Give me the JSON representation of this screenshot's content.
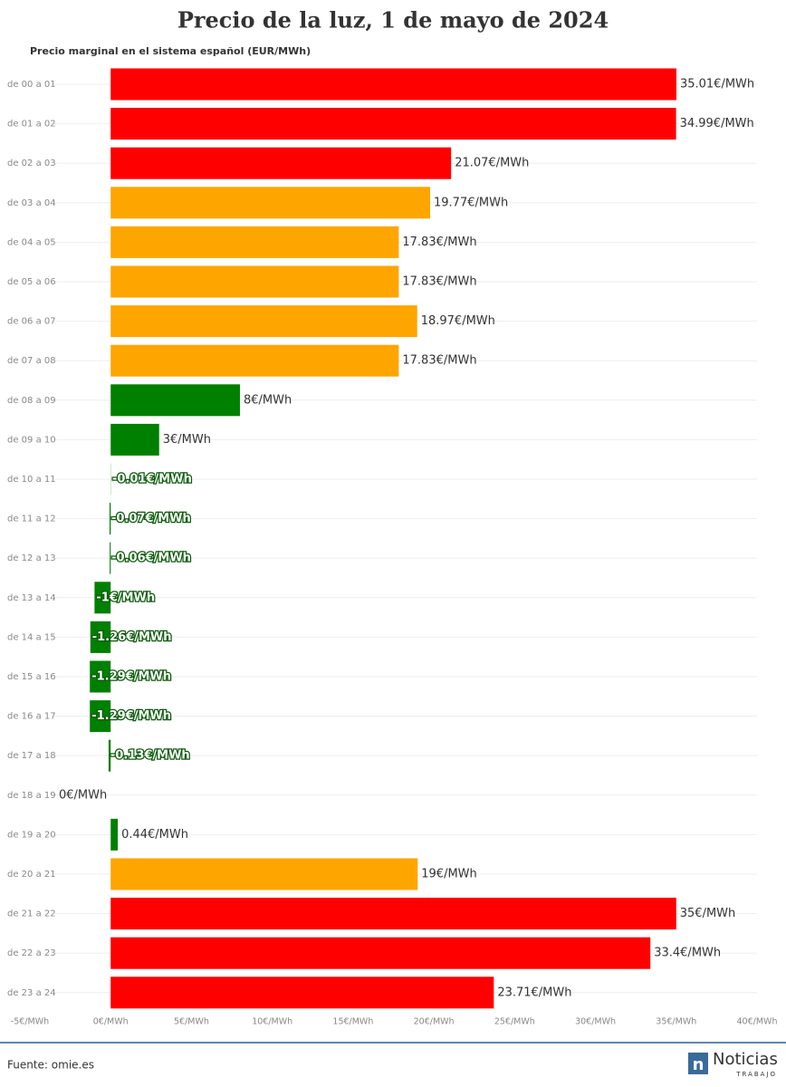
{
  "chart_data": {
    "type": "bar",
    "orientation": "horizontal",
    "title": "Precio de la luz, 1 de mayo de 2024",
    "subtitle": "Precio marginal en el sistema español (EUR/MWh)",
    "categories": [
      "de 00 a 01",
      "de 01 a 02",
      "de 02 a 03",
      "de 03 a 04",
      "de 04 a 05",
      "de 05 a 06",
      "de 06 a 07",
      "de 07 a 08",
      "de 08 a 09",
      "de 09 a 10",
      "de 10 a 11",
      "de 11 a 12",
      "de 12 a 13",
      "de 13 a 14",
      "de 14 a 15",
      "de 15 a 16",
      "de 16 a 17",
      "de 17 a 18",
      "de 18 a 19",
      "de 19 a 20",
      "de 20 a 21",
      "de 21 a 22",
      "de 22 a 23",
      "de 23 a 24"
    ],
    "values": [
      35.01,
      34.99,
      21.07,
      19.77,
      17.83,
      17.83,
      18.97,
      17.83,
      8,
      3,
      -0.01,
      -0.07,
      -0.06,
      -1,
      -1.26,
      -1.29,
      -1.29,
      -0.13,
      0,
      0.44,
      19,
      35,
      33.4,
      23.71
    ],
    "value_labels": [
      "35.01€/MWh",
      "34.99€/MWh",
      "21.07€/MWh",
      "19.77€/MWh",
      "17.83€/MWh",
      "17.83€/MWh",
      "18.97€/MWh",
      "17.83€/MWh",
      "8€/MWh",
      "3€/MWh",
      "-0.01€/MWh",
      "-0.07€/MWh",
      "-0.06€/MWh",
      "-1€/MWh",
      "-1.26€/MWh",
      "-1.29€/MWh",
      "-1.29€/MWh",
      "-0.13€/MWh",
      "0€/MWh",
      "0.44€/MWh",
      "19€/MWh",
      "35€/MWh",
      "33.4€/MWh",
      "23.71€/MWh"
    ],
    "colors": [
      "#ff0000",
      "#ff0000",
      "#ff0000",
      "#ffa500",
      "#ffa500",
      "#ffa500",
      "#ffa500",
      "#ffa500",
      "#008000",
      "#008000",
      "#008000",
      "#008000",
      "#008000",
      "#008000",
      "#008000",
      "#008000",
      "#008000",
      "#008000",
      "#008000",
      "#008000",
      "#ffa500",
      "#ff0000",
      "#ff0000",
      "#ff0000"
    ],
    "xlim": [
      -5,
      40
    ],
    "xticks": [
      {
        "value": -5,
        "label": "-5€/MWh"
      },
      {
        "value": 0,
        "label": "0€/MWh"
      },
      {
        "value": 5,
        "label": "5€/MWh"
      },
      {
        "value": 10,
        "label": "10€/MWh"
      },
      {
        "value": 15,
        "label": "15€/MWh"
      },
      {
        "value": 20,
        "label": "20€/MWh"
      },
      {
        "value": 25,
        "label": "25€/MWh"
      },
      {
        "value": 30,
        "label": "30€/MWh"
      },
      {
        "value": 35,
        "label": "35€/MWh"
      },
      {
        "value": 40,
        "label": "40€/MWh"
      }
    ],
    "source": "Fuente: omie.es",
    "logo": {
      "name": "Noticias",
      "tagline": "TRABAJO"
    }
  }
}
